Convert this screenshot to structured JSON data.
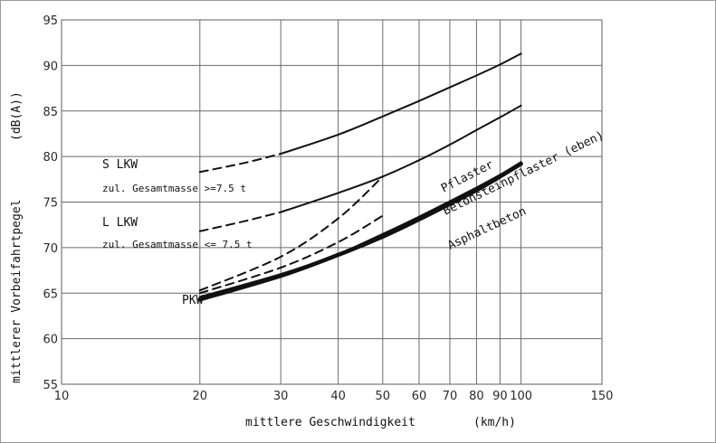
{
  "chart_data": {
    "type": "line",
    "title": "",
    "xlabel": "mittlere Geschwindigkeit",
    "xunit": "(km/h)",
    "ylabel": "mittlerer Vorbeifahrtpegel",
    "yunit": "(dB(A))",
    "xscale": "log",
    "xlim": [
      10,
      150
    ],
    "ylim": [
      55,
      95
    ],
    "xticks": [
      10,
      20,
      30,
      40,
      50,
      60,
      70,
      80,
      90,
      100,
      150
    ],
    "yticks": [
      55,
      60,
      65,
      70,
      75,
      80,
      85,
      90,
      95
    ],
    "grid": true,
    "series": [
      {
        "name": "S LKW",
        "style": "dashed",
        "x": [
          20,
          25,
          30
        ],
        "y": [
          78.3,
          79.3,
          80.3
        ]
      },
      {
        "name": "S LKW",
        "style": "solid",
        "x": [
          30,
          40,
          50,
          60,
          70,
          80,
          90,
          100
        ],
        "y": [
          80.3,
          82.4,
          84.4,
          86.1,
          87.6,
          88.9,
          90.1,
          91.3
        ]
      },
      {
        "name": "L LKW",
        "style": "dashed",
        "x": [
          20,
          25,
          30
        ],
        "y": [
          71.8,
          72.9,
          73.9
        ]
      },
      {
        "name": "L LKW",
        "style": "solid",
        "x": [
          30,
          40,
          50,
          60,
          70,
          80,
          90,
          100
        ],
        "y": [
          73.9,
          76.0,
          77.8,
          79.6,
          81.3,
          82.9,
          84.3,
          85.6
        ]
      },
      {
        "name": "Pflaster",
        "style": "dashed",
        "x": [
          20,
          30,
          40,
          50
        ],
        "y": [
          65.3,
          69.0,
          73.2,
          77.8
        ]
      },
      {
        "name": "Betonsteinpflaster (eben)",
        "style": "dashed",
        "x": [
          20,
          30,
          40,
          50
        ],
        "y": [
          65.0,
          67.8,
          70.6,
          73.5
        ]
      },
      {
        "name": "Asphaltbeton",
        "style": "bold",
        "x": [
          20,
          30,
          40,
          50,
          60,
          70,
          80,
          90,
          100
        ],
        "y": [
          64.3,
          66.9,
          69.2,
          71.2,
          73.1,
          74.8,
          76.3,
          77.8,
          79.2
        ]
      },
      {
        "name": "PKW",
        "style": "solid",
        "x": [
          20,
          30,
          40,
          50,
          60,
          70,
          80,
          90,
          100
        ],
        "y": [
          64.6,
          67.1,
          69.3,
          71.5,
          73.4,
          75.1,
          76.6,
          78.0,
          79.4
        ]
      }
    ],
    "annotations": [
      {
        "text": "S LKW",
        "size": "normal"
      },
      {
        "text": "zul. Gesamtmasse >=7.5 t",
        "size": "small"
      },
      {
        "text": "L LKW",
        "size": "normal"
      },
      {
        "text": "zul. Gesamtmasse <= 7.5 t",
        "size": "small"
      },
      {
        "text": "PKW",
        "size": "normal"
      },
      {
        "text": "Pflaster",
        "size": "normal"
      },
      {
        "text": "Betonsteinpflaster (eben)",
        "size": "normal"
      },
      {
        "text": "Asphaltbeton",
        "size": "normal"
      }
    ]
  }
}
